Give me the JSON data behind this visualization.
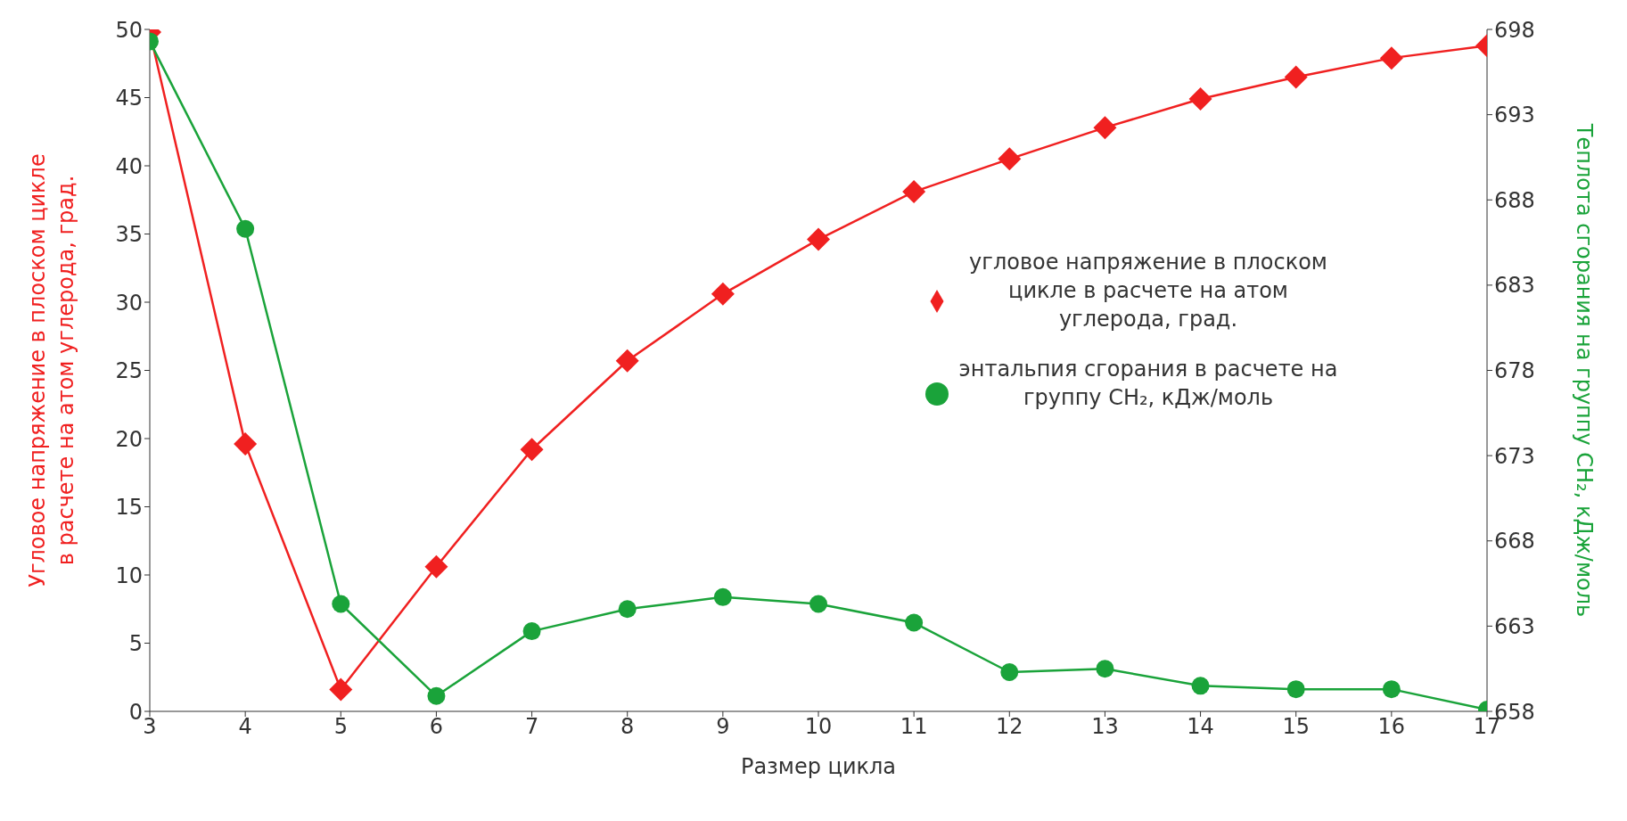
{
  "chart_data": {
    "type": "line",
    "xlabel": "Размер цикла",
    "ylabel": "Угловое напряжение в плоском цикле в расчете на атом углерода, град.",
    "y2label": "Теплота сгорания на группу CH₂, кДж/моль",
    "x": [
      3,
      4,
      5,
      6,
      7,
      8,
      9,
      10,
      11,
      12,
      13,
      14,
      15,
      16,
      17
    ],
    "xlim": [
      3,
      17
    ],
    "xticks": [
      3,
      4,
      5,
      6,
      7,
      8,
      9,
      10,
      11,
      12,
      13,
      14,
      15,
      16,
      17
    ],
    "ylim": [
      0,
      50
    ],
    "yticks": [
      0,
      5,
      10,
      15,
      20,
      25,
      30,
      35,
      40,
      45,
      50
    ],
    "y2lim": [
      658,
      698
    ],
    "y2ticks": [
      658,
      663,
      668,
      673,
      678,
      683,
      688,
      693,
      698
    ],
    "grid": false,
    "legend": "right",
    "line_style": "solid",
    "series": [
      {
        "name": "угловое напряжение в плоском цикле в расчете на атом углерода, град.",
        "color": "#f02020",
        "marker": "diamond",
        "values": [
          49.8,
          19.6,
          1.6,
          10.6,
          19.2,
          25.7,
          30.6,
          34.6,
          38.1,
          40.5,
          42.8,
          44.9,
          46.5,
          47.9,
          48.8
        ]
      },
      {
        "name": "энтальпия сгорания в расчете на группу CH₂, кДж/моль",
        "color": "#1aa33a",
        "marker": "circle",
        "axis": "y2",
        "values": [
          697.3,
          686.3,
          664.3,
          658.9,
          662.7,
          664.0,
          664.7,
          664.3,
          663.2,
          660.3,
          660.5,
          659.5,
          659.3,
          659.3,
          658.1
        ]
      }
    ]
  }
}
